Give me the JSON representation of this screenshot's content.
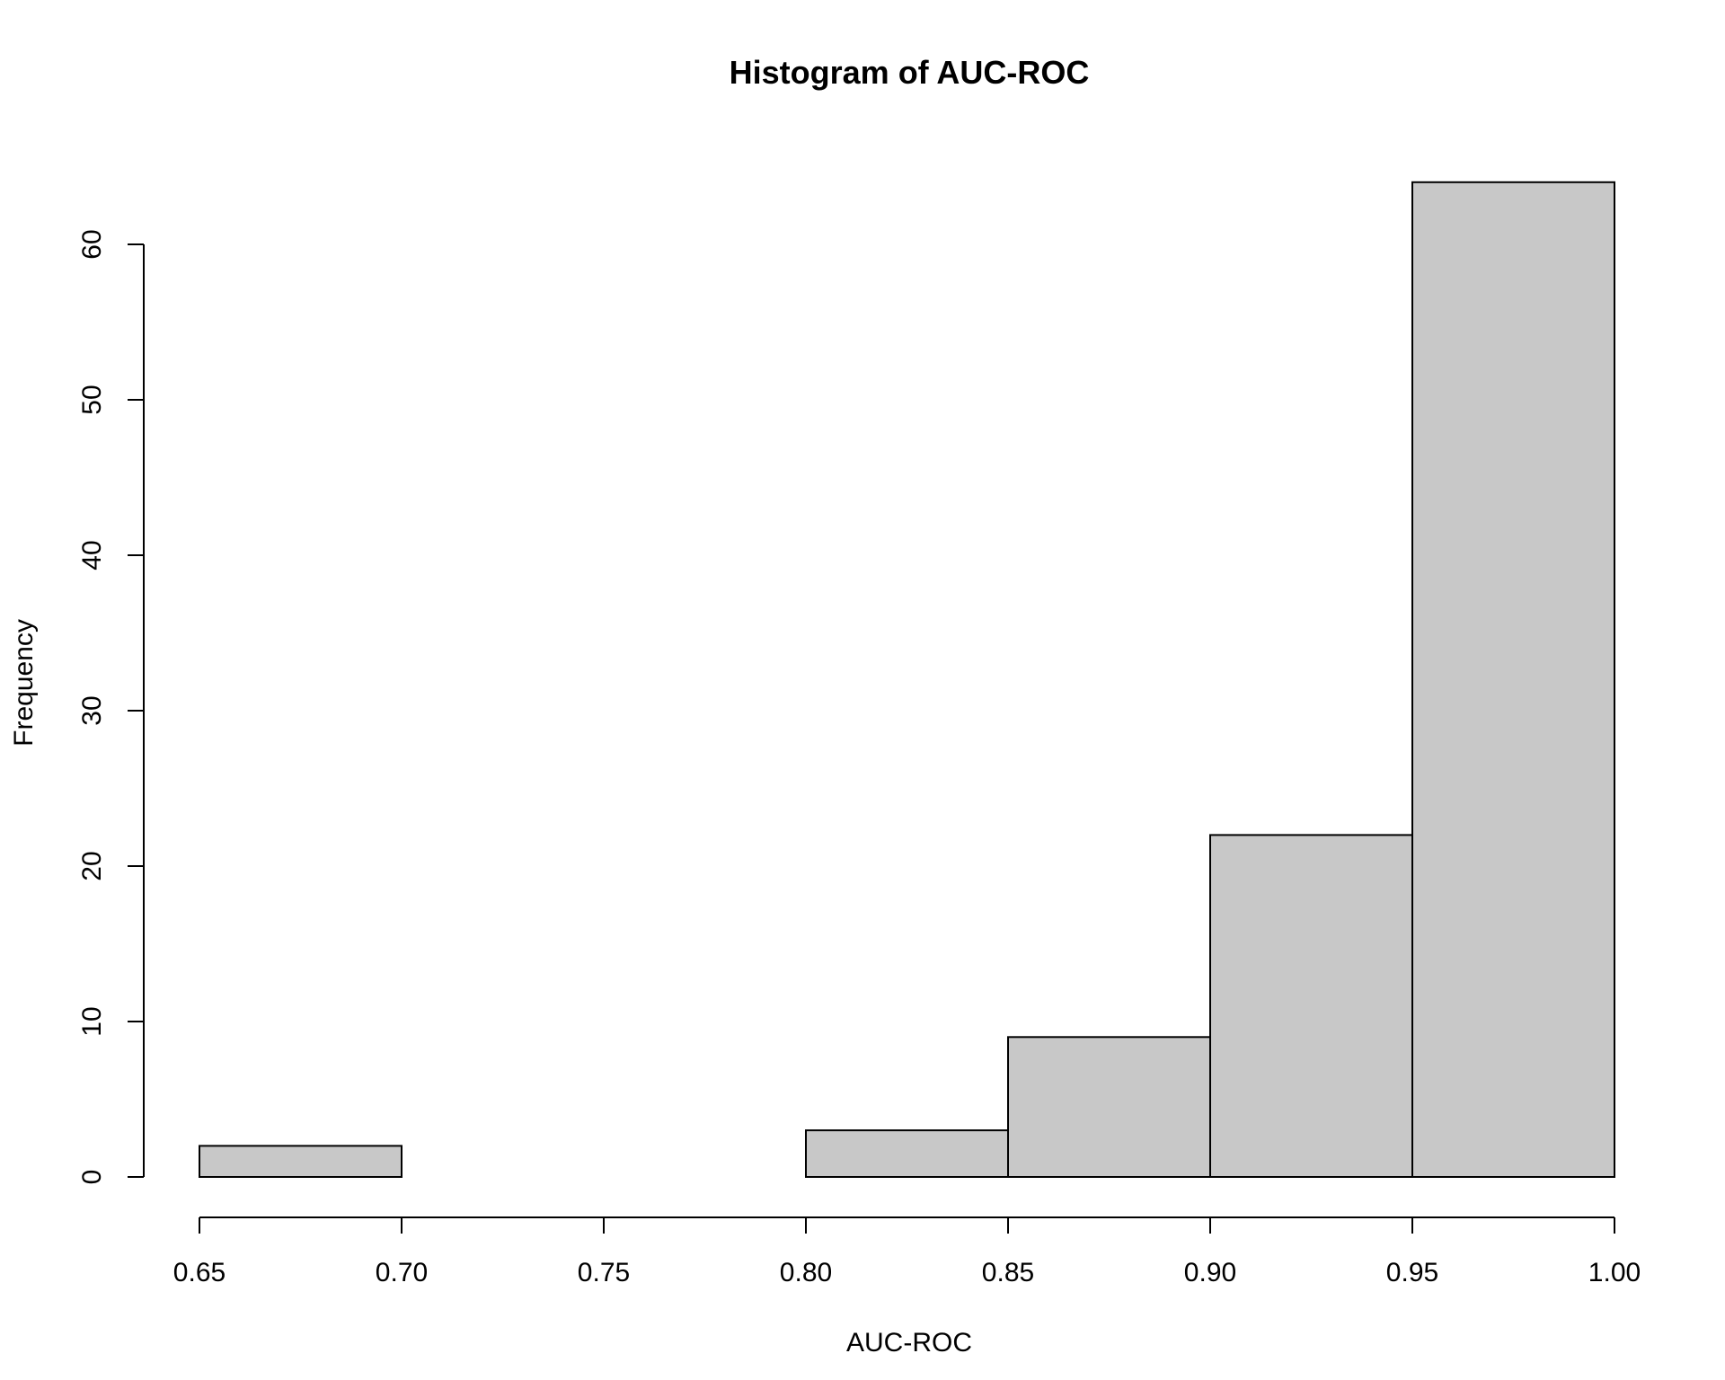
{
  "chart_data": {
    "type": "bar",
    "subtype": "histogram",
    "title": "Histogram of AUC-ROC",
    "xlabel": "AUC-ROC",
    "ylabel": "Frequency",
    "bins": [
      {
        "start": 0.65,
        "end": 0.7,
        "count": 2
      },
      {
        "start": 0.7,
        "end": 0.75,
        "count": 0
      },
      {
        "start": 0.75,
        "end": 0.8,
        "count": 0
      },
      {
        "start": 0.8,
        "end": 0.85,
        "count": 3
      },
      {
        "start": 0.85,
        "end": 0.9,
        "count": 9
      },
      {
        "start": 0.9,
        "end": 0.95,
        "count": 22
      },
      {
        "start": 0.95,
        "end": 1.0,
        "count": 64
      }
    ],
    "xlim": [
      0.65,
      1.0
    ],
    "ylim": [
      0,
      64
    ],
    "xticks": [
      "0.65",
      "0.70",
      "0.75",
      "0.80",
      "0.85",
      "0.90",
      "0.95",
      "1.00"
    ],
    "yticks": [
      "0",
      "10",
      "20",
      "30",
      "40",
      "50",
      "60"
    ],
    "bar_color": "#c8c8c8",
    "grid": false,
    "legend": "none"
  }
}
